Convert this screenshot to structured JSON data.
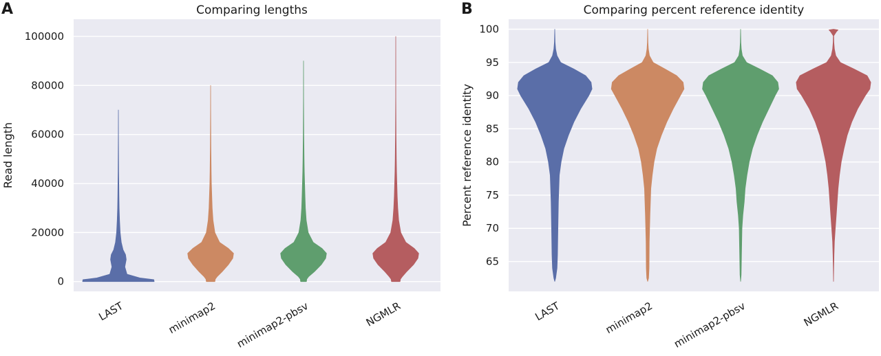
{
  "colors": {
    "background": "#eaeaf2",
    "grid": "#ffffff",
    "series": [
      "#5a6ea8",
      "#cc8963",
      "#5f9e6e",
      "#b55d60"
    ]
  },
  "chart_data": [
    {
      "type": "violin",
      "panel_label": "A",
      "title": "Comparing lengths",
      "xlabel": "",
      "ylabel": "Read length",
      "ylim": [
        -4000,
        107000
      ],
      "yticks": [
        0,
        20000,
        40000,
        60000,
        80000,
        100000
      ],
      "ytick_labels": [
        "0",
        "20000",
        "40000",
        "60000",
        "80000",
        "100000"
      ],
      "grid": true,
      "categories": [
        "LAST",
        "minimap2",
        "minimap2-pbsv",
        "NGMLR"
      ],
      "series": [
        {
          "category": "LAST",
          "min": 0,
          "max": 70000,
          "density": [
            [
              0,
              1.0
            ],
            [
              800,
              0.99
            ],
            [
              1500,
              0.6
            ],
            [
              3000,
              0.24
            ],
            [
              6000,
              0.18
            ],
            [
              9000,
              0.22
            ],
            [
              11000,
              0.2
            ],
            [
              13000,
              0.13
            ],
            [
              16000,
              0.08
            ],
            [
              20000,
              0.05
            ],
            [
              25000,
              0.033
            ],
            [
              30000,
              0.022
            ],
            [
              35000,
              0.016
            ],
            [
              40000,
              0.011
            ],
            [
              45000,
              0.007
            ],
            [
              50000,
              0.005
            ],
            [
              55000,
              0.003
            ],
            [
              60000,
              0.002
            ],
            [
              70000,
              0.0
            ]
          ]
        },
        {
          "category": "minimap2",
          "min": 0,
          "max": 80000,
          "density": [
            [
              0,
              0.12
            ],
            [
              1000,
              0.13
            ],
            [
              2000,
              0.18
            ],
            [
              4000,
              0.32
            ],
            [
              7000,
              0.5
            ],
            [
              9500,
              0.62
            ],
            [
              11500,
              0.64
            ],
            [
              13500,
              0.5
            ],
            [
              16000,
              0.25
            ],
            [
              20000,
              0.12
            ],
            [
              25000,
              0.068
            ],
            [
              30000,
              0.045
            ],
            [
              35000,
              0.032
            ],
            [
              40000,
              0.022
            ],
            [
              45000,
              0.015
            ],
            [
              50000,
              0.011
            ],
            [
              55000,
              0.008
            ],
            [
              60000,
              0.005
            ],
            [
              70000,
              0.002
            ],
            [
              80000,
              0.0
            ]
          ]
        },
        {
          "category": "minimap2-pbsv",
          "min": 0,
          "max": 90000,
          "density": [
            [
              0,
              0.08
            ],
            [
              1000,
              0.09
            ],
            [
              2000,
              0.14
            ],
            [
              4000,
              0.3
            ],
            [
              7000,
              0.5
            ],
            [
              9500,
              0.62
            ],
            [
              11500,
              0.64
            ],
            [
              13500,
              0.52
            ],
            [
              16000,
              0.27
            ],
            [
              20000,
              0.13
            ],
            [
              25000,
              0.075
            ],
            [
              30000,
              0.052
            ],
            [
              35000,
              0.04
            ],
            [
              40000,
              0.03
            ],
            [
              45000,
              0.022
            ],
            [
              50000,
              0.016
            ],
            [
              55000,
              0.012
            ],
            [
              60000,
              0.008
            ],
            [
              65000,
              0.005
            ],
            [
              75000,
              0.002
            ],
            [
              90000,
              0.0
            ]
          ]
        },
        {
          "category": "NGMLR",
          "min": 0,
          "max": 100000,
          "density": [
            [
              0,
              0.12
            ],
            [
              1000,
              0.13
            ],
            [
              2000,
              0.18
            ],
            [
              4000,
              0.3
            ],
            [
              7000,
              0.5
            ],
            [
              9500,
              0.62
            ],
            [
              11500,
              0.64
            ],
            [
              13500,
              0.52
            ],
            [
              16000,
              0.28
            ],
            [
              20000,
              0.14
            ],
            [
              25000,
              0.08
            ],
            [
              30000,
              0.055
            ],
            [
              35000,
              0.04
            ],
            [
              40000,
              0.03
            ],
            [
              45000,
              0.022
            ],
            [
              50000,
              0.016
            ],
            [
              55000,
              0.012
            ],
            [
              60000,
              0.008
            ],
            [
              65000,
              0.005
            ],
            [
              75000,
              0.002
            ],
            [
              100000,
              0.0
            ]
          ]
        }
      ]
    },
    {
      "type": "violin",
      "panel_label": "B",
      "title": "Comparing percent reference identity",
      "xlabel": "",
      "ylabel": "Percent reference identity",
      "ylim": [
        60.5,
        101.5
      ],
      "yticks": [
        65,
        70,
        75,
        80,
        85,
        90,
        95,
        100
      ],
      "ytick_labels": [
        "65",
        "70",
        "75",
        "80",
        "85",
        "90",
        "95",
        "100"
      ],
      "grid": true,
      "categories": [
        "LAST",
        "minimap2",
        "minimap2-pbsv",
        "NGMLR"
      ],
      "series": [
        {
          "category": "LAST",
          "min": 62,
          "max": 100,
          "density": [
            [
              62,
              0.0
            ],
            [
              62.5,
              0.02
            ],
            [
              64,
              0.05
            ],
            [
              66,
              0.06
            ],
            [
              70,
              0.07
            ],
            [
              74,
              0.08
            ],
            [
              78,
              0.1
            ],
            [
              80,
              0.14
            ],
            [
              82,
              0.2
            ],
            [
              84,
              0.3
            ],
            [
              86,
              0.42
            ],
            [
              88,
              0.57
            ],
            [
              90,
              0.75
            ],
            [
              91,
              0.82
            ],
            [
              92,
              0.8
            ],
            [
              93,
              0.68
            ],
            [
              94,
              0.42
            ],
            [
              95,
              0.13
            ],
            [
              96,
              0.05
            ],
            [
              97,
              0.02
            ],
            [
              98,
              0.008
            ],
            [
              100,
              0.0
            ]
          ]
        },
        {
          "category": "minimap2",
          "min": 62,
          "max": 100,
          "density": [
            [
              62,
              0.0
            ],
            [
              62.5,
              0.02
            ],
            [
              64,
              0.03
            ],
            [
              68,
              0.035
            ],
            [
              72,
              0.05
            ],
            [
              76,
              0.07
            ],
            [
              78,
              0.1
            ],
            [
              80,
              0.14
            ],
            [
              82,
              0.2
            ],
            [
              84,
              0.3
            ],
            [
              86,
              0.42
            ],
            [
              88,
              0.56
            ],
            [
              90,
              0.72
            ],
            [
              91,
              0.8
            ],
            [
              92,
              0.78
            ],
            [
              93,
              0.64
            ],
            [
              94,
              0.38
            ],
            [
              95,
              0.12
            ],
            [
              96,
              0.04
            ],
            [
              97,
              0.015
            ],
            [
              98,
              0.006
            ],
            [
              100,
              0.0
            ]
          ]
        },
        {
          "category": "minimap2-pbsv",
          "min": 62,
          "max": 100,
          "density": [
            [
              62,
              0.0
            ],
            [
              63,
              0.012
            ],
            [
              66,
              0.02
            ],
            [
              70,
              0.03
            ],
            [
              72,
              0.05
            ],
            [
              74,
              0.08
            ],
            [
              76,
              0.1
            ],
            [
              78,
              0.14
            ],
            [
              80,
              0.19
            ],
            [
              82,
              0.26
            ],
            [
              84,
              0.36
            ],
            [
              86,
              0.48
            ],
            [
              88,
              0.62
            ],
            [
              90,
              0.76
            ],
            [
              91,
              0.84
            ],
            [
              92,
              0.82
            ],
            [
              93,
              0.7
            ],
            [
              94,
              0.42
            ],
            [
              95,
              0.13
            ],
            [
              96,
              0.04
            ],
            [
              97,
              0.015
            ],
            [
              98,
              0.006
            ],
            [
              100,
              0.0
            ]
          ]
        },
        {
          "category": "NGMLR",
          "min": 62,
          "max": 100,
          "density": [
            [
              62,
              0.0
            ],
            [
              64,
              0.005
            ],
            [
              66,
              0.01
            ],
            [
              68,
              0.02
            ],
            [
              70,
              0.04
            ],
            [
              72,
              0.06
            ],
            [
              74,
              0.08
            ],
            [
              76,
              0.1
            ],
            [
              78,
              0.13
            ],
            [
              80,
              0.17
            ],
            [
              82,
              0.23
            ],
            [
              84,
              0.3
            ],
            [
              86,
              0.4
            ],
            [
              88,
              0.53
            ],
            [
              90,
              0.7
            ],
            [
              91,
              0.8
            ],
            [
              92,
              0.82
            ],
            [
              93,
              0.74
            ],
            [
              94,
              0.45
            ],
            [
              95,
              0.15
            ],
            [
              96,
              0.05
            ],
            [
              97,
              0.02
            ],
            [
              98,
              0.008
            ],
            [
              99,
              0.005
            ],
            [
              99.6,
              0.06
            ],
            [
              99.9,
              0.1
            ],
            [
              100,
              0.0
            ]
          ]
        }
      ]
    }
  ]
}
